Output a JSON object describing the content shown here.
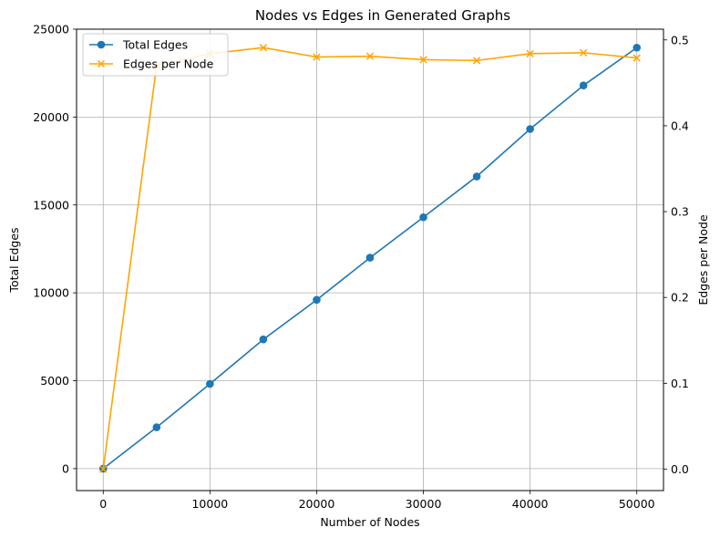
{
  "chart_data": {
    "type": "line",
    "title": "Nodes vs Edges in Generated Graphs",
    "xlabel": "Number of Nodes",
    "ylabel": "Total Edges",
    "y2label": "Edges per Node",
    "xlim": [
      -2500,
      52500
    ],
    "ylim": [
      -1250,
      25000
    ],
    "y2lim": [
      -0.025,
      0.5125
    ],
    "x_ticks": [
      0,
      10000,
      20000,
      30000,
      40000,
      50000
    ],
    "y_ticks": [
      0,
      5000,
      10000,
      15000,
      20000,
      25000
    ],
    "y2_ticks": [
      0.0,
      0.1,
      0.2,
      0.3,
      0.4,
      0.5
    ],
    "x_tick_labels": [
      "0",
      "10000",
      "20000",
      "30000",
      "40000",
      "50000"
    ],
    "y_tick_labels": [
      "0",
      "5000",
      "10000",
      "15000",
      "20000",
      "25000"
    ],
    "y2_tick_labels": [
      "0.0",
      "0.1",
      "0.2",
      "0.3",
      "0.4",
      "0.5"
    ],
    "grid": true,
    "legend_position": "top-left",
    "x": [
      0,
      5000,
      10000,
      15000,
      20000,
      25000,
      30000,
      35000,
      40000,
      45000,
      50000
    ],
    "series": [
      {
        "name": "Total Edges",
        "axis": "left",
        "color": "#1f77b4",
        "marker": "circle",
        "values": [
          0,
          2350,
          4820,
          7350,
          9600,
          12000,
          14300,
          16620,
          19320,
          21800,
          23950
        ]
      },
      {
        "name": "Edges per Node",
        "axis": "right",
        "color": "#ffa500",
        "marker": "x",
        "values": [
          0.0,
          0.47,
          0.484,
          0.491,
          0.48,
          0.481,
          0.477,
          0.476,
          0.484,
          0.485,
          0.479
        ]
      }
    ]
  }
}
